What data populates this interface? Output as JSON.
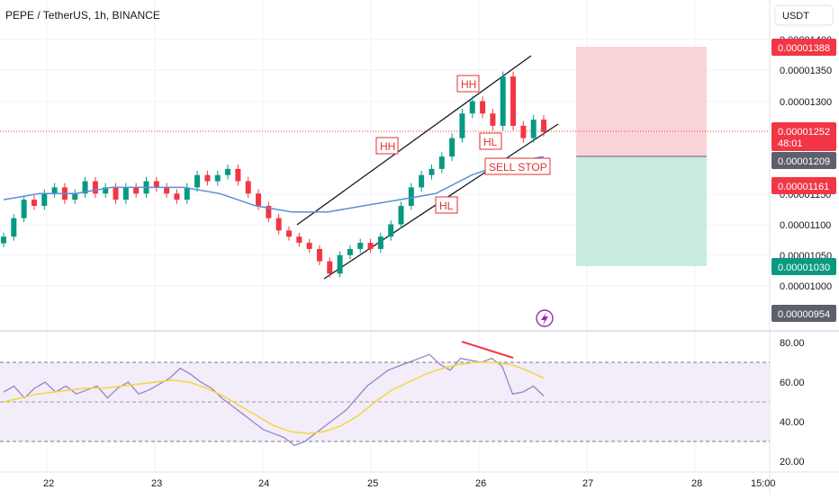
{
  "header": {
    "symbol": "PEPE / TetherUS, 1h, BINANCE"
  },
  "currency_button": "USDT",
  "price_axis": {
    "ticks": [
      "0.00001400",
      "0.00001350",
      "0.00001300",
      "0.00001150",
      "0.00001100",
      "0.00001050",
      "0.00001000"
    ]
  },
  "price_tags": [
    {
      "label": "0.00001388",
      "value": 1.388e-05,
      "color": "#f23645"
    },
    {
      "label": "0.00001252",
      "value": 1.252e-05,
      "sub": "48:01",
      "color": "#f23645"
    },
    {
      "label": "0.00001209",
      "value": 1.209e-05,
      "color": "#5d606b"
    },
    {
      "label": "0.00001161",
      "value": 1.161e-05,
      "color": "#f23645"
    },
    {
      "label": "0.00001030",
      "value": 1.03e-05,
      "color": "#089981"
    },
    {
      "label": "0.00000954",
      "value": 9.54e-06,
      "color": "#5d606b"
    }
  ],
  "rsi_axis": {
    "ticks": [
      "80.00",
      "60.00",
      "40.00",
      "20.00"
    ]
  },
  "time_axis": {
    "ticks": [
      "22",
      "23",
      "24",
      "25",
      "26",
      "27",
      "28",
      "15:00"
    ]
  },
  "annotations": [
    "HH",
    "HH",
    "HL",
    "HL",
    "SELL STOP"
  ],
  "colors": {
    "up": "#089981",
    "down": "#f23645",
    "ma": "#5b8fd8",
    "rsi": "#9a83c9",
    "rsi_ma": "#f5d63d",
    "stop_zone": "#f9d4d6",
    "target_zone": "#c9ebe2"
  },
  "chart_data": [
    {
      "type": "candlestick",
      "title": "PEPE / TetherUS, 1h, BINANCE",
      "x_ticks": [
        "22",
        "23",
        "24",
        "25",
        "26",
        "27",
        "28",
        "15:00"
      ],
      "ylim": [
        9.54e-06,
        1.4e-05
      ],
      "candles_approx_close": [
        1.08e-05,
        1.11e-05,
        1.14e-05,
        1.13e-05,
        1.15e-05,
        1.16e-05,
        1.14e-05,
        1.15e-05,
        1.17e-05,
        1.15e-05,
        1.16e-05,
        1.14e-05,
        1.16e-05,
        1.15e-05,
        1.17e-05,
        1.16e-05,
        1.15e-05,
        1.14e-05,
        1.16e-05,
        1.18e-05,
        1.17e-05,
        1.18e-05,
        1.19e-05,
        1.17e-05,
        1.15e-05,
        1.13e-05,
        1.11e-05,
        1.09e-05,
        1.08e-05,
        1.07e-05,
        1.06e-05,
        1.04e-05,
        1.02e-05,
        1.05e-05,
        1.06e-05,
        1.07e-05,
        1.06e-05,
        1.08e-05,
        1.1e-05,
        1.13e-05,
        1.16e-05,
        1.18e-05,
        1.19e-05,
        1.21e-05,
        1.24e-05,
        1.28e-05,
        1.3e-05,
        1.28e-05,
        1.26e-05,
        1.34e-05,
        1.26e-05,
        1.24e-05,
        1.27e-05,
        1.25e-05
      ],
      "moving_average_approx": [
        1.14e-05,
        1.15e-05,
        1.15e-05,
        1.16e-05,
        1.16e-05,
        1.16e-05,
        1.15e-05,
        1.13e-05,
        1.12e-05,
        1.12e-05,
        1.13e-05,
        1.14e-05,
        1.15e-05,
        1.18e-05,
        1.2e-05,
        1.21e-05
      ],
      "trade_levels": {
        "stop": 1.388e-05,
        "entry": 1.209e-05,
        "target": 1.03e-05,
        "last": 1.252e-05
      },
      "rsi": {
        "ylim": [
          20,
          80
        ],
        "bands": [
          30,
          50,
          70
        ],
        "values_approx": [
          55,
          58,
          52,
          57,
          60,
          55,
          58,
          54,
          56,
          58,
          52,
          57,
          60,
          54,
          56,
          59,
          62,
          67,
          64,
          60,
          57,
          52,
          48,
          44,
          40,
          36,
          34,
          32,
          28,
          30,
          34,
          38,
          42,
          46,
          52,
          58,
          62,
          66,
          68,
          70,
          72,
          74,
          69,
          66,
          72,
          71,
          70,
          72,
          68,
          54,
          55,
          58,
          53
        ],
        "ma_values_approx": [
          50,
          52,
          54,
          55,
          56,
          57,
          57,
          58,
          59,
          60,
          61,
          60,
          57,
          53,
          48,
          43,
          38,
          35,
          34,
          35,
          38,
          43,
          50,
          56,
          60,
          64,
          67,
          69,
          70,
          70,
          69,
          66,
          62
        ]
      }
    }
  ]
}
